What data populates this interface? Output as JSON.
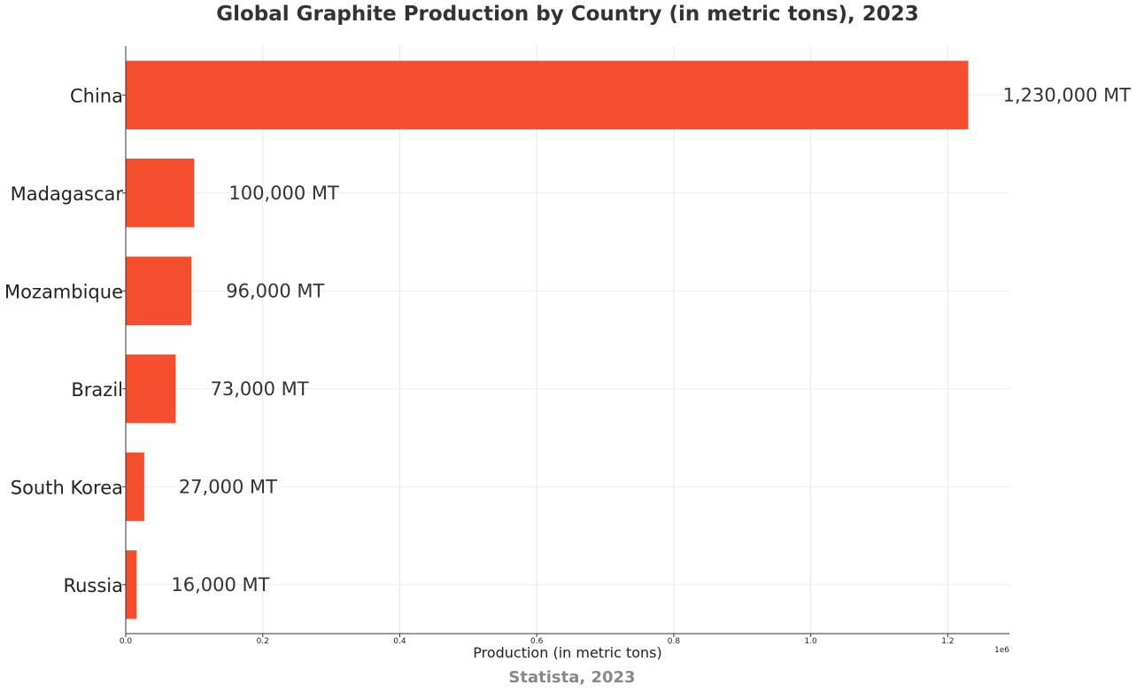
{
  "chart_data": {
    "type": "bar",
    "orientation": "horizontal",
    "title": "Global Graphite Production by Country (in metric tons), 2023",
    "xlabel": "Production (in metric tons)",
    "ylabel": "",
    "source_note": "Statista, 2023",
    "x_scale_label": "1e6",
    "xlim": [
      0,
      1.29
    ],
    "x_ticks": [
      0.0,
      0.2,
      0.4,
      0.6,
      0.8,
      1.0,
      1.2
    ],
    "x_tick_labels": [
      "0.0",
      "0.2",
      "0.4",
      "0.6",
      "0.8",
      "1.0",
      "1.2"
    ],
    "grid": true,
    "categories": [
      "China",
      "Madagascar",
      "Mozambique",
      "Brazil",
      "South Korea",
      "Russia"
    ],
    "values": [
      1230000,
      100000,
      96000,
      73000,
      27000,
      16000
    ],
    "data_labels": [
      "1,230,000 MT",
      "100,000 MT",
      "96,000 MT",
      "73,000 MT",
      "27,000 MT",
      "16,000 MT"
    ],
    "bar_color": "#f44e2e",
    "text_color": "#333333",
    "note_color": "#888888"
  }
}
